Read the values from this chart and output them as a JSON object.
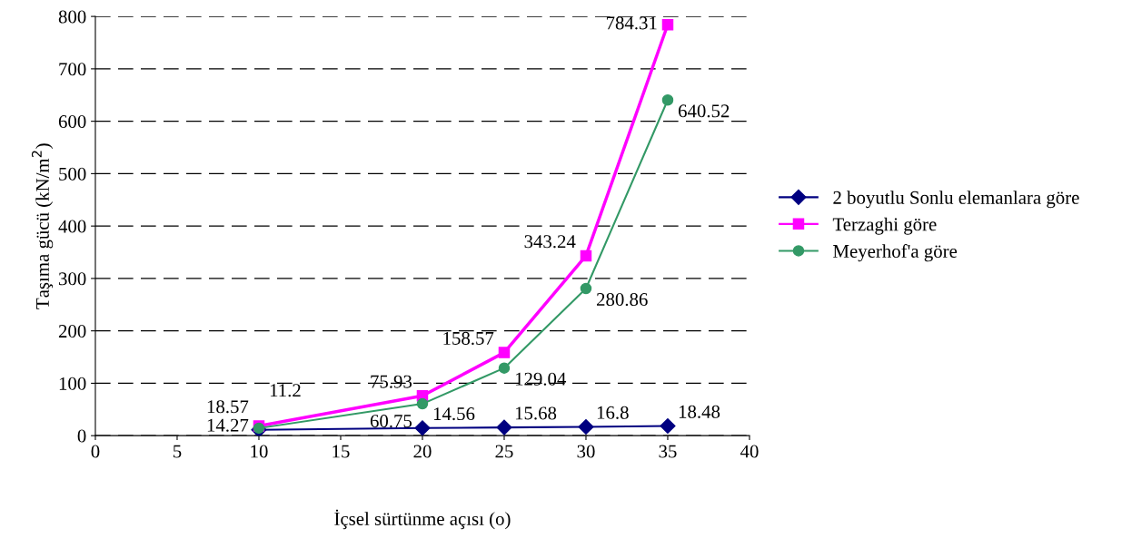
{
  "chart_data": {
    "type": "line",
    "xlabel": "İçsel sürtünme açısı (o)",
    "ylabel": "Taşıma gücü (kN/m$^{2}$)",
    "x": [
      10,
      20,
      25,
      30,
      35
    ],
    "series": [
      {
        "name": "2 boyutlu Sonlu elemanlara göre",
        "color": "#000080",
        "marker": "diamond",
        "values": [
          11.2,
          14.56,
          15.68,
          16.8,
          18.48
        ]
      },
      {
        "name": "Terzaghi göre",
        "color": "#ff00ff",
        "marker": "square",
        "values": [
          18.57,
          75.93,
          158.57,
          343.24,
          784.31
        ]
      },
      {
        "name": "Meyerhof'a göre",
        "color": "#339966",
        "marker": "circle",
        "values": [
          14.27,
          60.75,
          129.04,
          280.86,
          640.52
        ]
      }
    ],
    "xlim": [
      0,
      40
    ],
    "xticks": [
      0,
      5,
      10,
      15,
      20,
      25,
      30,
      35,
      40
    ],
    "ylim": [
      0,
      800
    ],
    "yticks": [
      0,
      100,
      200,
      300,
      400,
      500,
      600,
      700,
      800
    ],
    "grid": "y",
    "legend": "right",
    "data_labels": true
  }
}
